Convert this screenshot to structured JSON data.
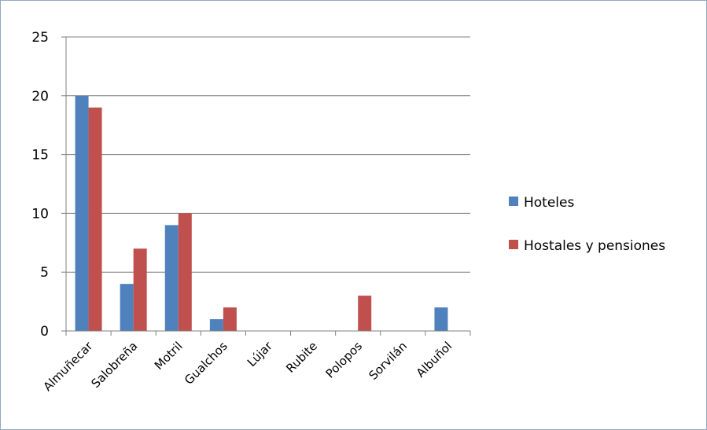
{
  "chart_data": {
    "type": "bar",
    "title": "",
    "xlabel": "",
    "ylabel": "",
    "categories": [
      "Almuñecar",
      "Salobreña",
      "Motril",
      "Gualchos",
      "Lújar",
      "Rubite",
      "Polopos",
      "Sorvilán",
      "Albuñol"
    ],
    "series": [
      {
        "name": "Hoteles",
        "values": [
          20,
          4,
          9,
          1,
          0,
          0,
          0,
          0,
          2
        ],
        "color": "#4f81bd"
      },
      {
        "name": "Hostales y pensiones",
        "values": [
          19,
          7,
          10,
          2,
          0,
          0,
          3,
          0,
          0
        ],
        "color": "#c0504d"
      }
    ],
    "ylim": [
      0,
      25
    ],
    "yticks": [
      0,
      5,
      10,
      15,
      20,
      25
    ],
    "grid": true,
    "legend_position": "right"
  },
  "colors": {
    "axis": "#7f7f7f",
    "grid": "#7f7f7f",
    "frame_border": "#8ea9c9"
  }
}
